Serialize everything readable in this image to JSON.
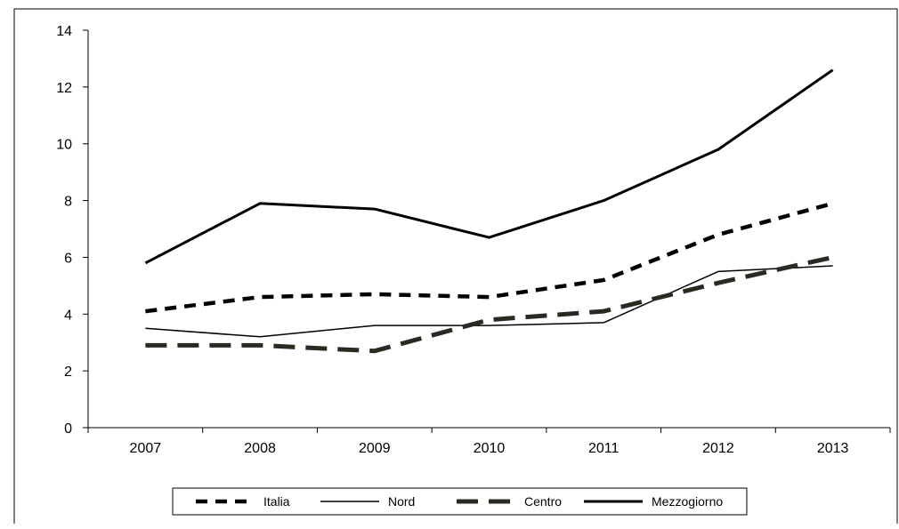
{
  "chart_data": {
    "type": "line",
    "categories": [
      "2007",
      "2008",
      "2009",
      "2010",
      "2011",
      "2012",
      "2013"
    ],
    "ylim": [
      0,
      14
    ],
    "yticks": [
      0,
      2,
      4,
      6,
      8,
      10,
      12,
      14
    ],
    "grid": false,
    "legend_position": "bottom",
    "series": [
      {
        "name": "Italia",
        "values": [
          4.1,
          4.6,
          4.7,
          4.6,
          5.2,
          6.8,
          7.9
        ],
        "color": "#000000",
        "style": "short-dash"
      },
      {
        "name": "Nord",
        "values": [
          3.5,
          3.2,
          3.6,
          3.6,
          3.7,
          5.5,
          5.7
        ],
        "color": "#000000",
        "style": "solid-thin"
      },
      {
        "name": "Centro",
        "values": [
          2.9,
          2.9,
          2.7,
          3.8,
          4.1,
          5.1,
          6.0
        ],
        "color": "#2a2a22",
        "style": "long-dash"
      },
      {
        "name": "Mezzogiorno",
        "values": [
          5.8,
          7.9,
          7.7,
          6.7,
          8.0,
          9.8,
          12.6
        ],
        "color": "#000000",
        "style": "solid-thick"
      }
    ]
  }
}
